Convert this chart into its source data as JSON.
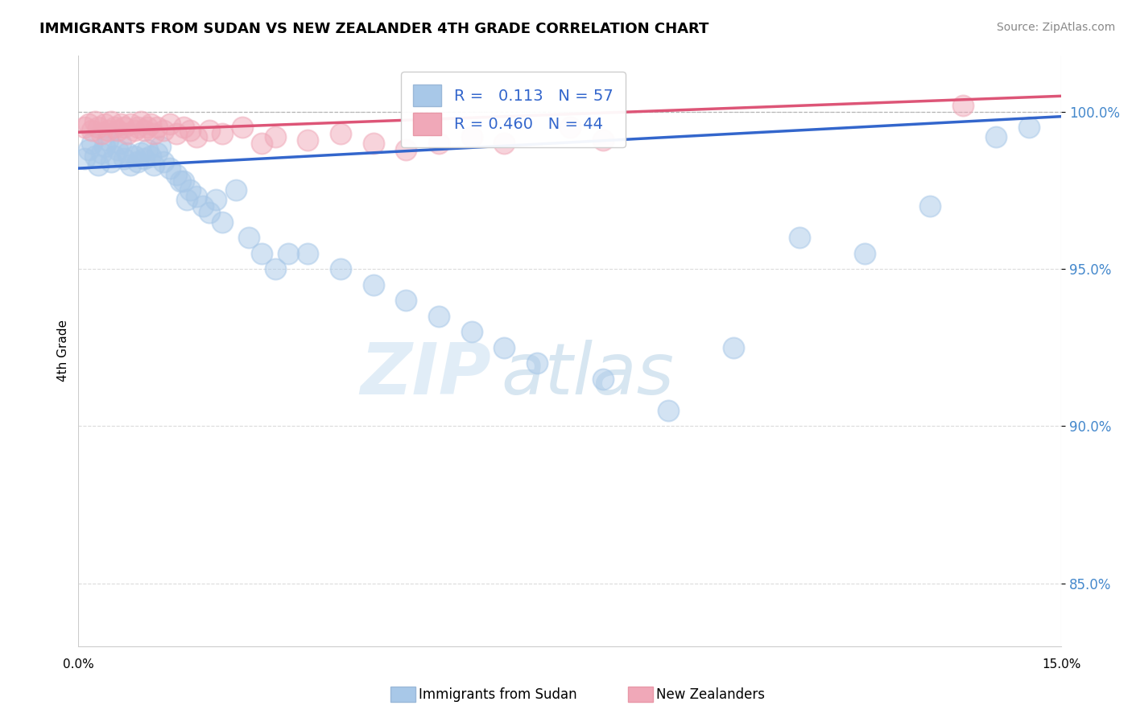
{
  "title": "IMMIGRANTS FROM SUDAN VS NEW ZEALANDER 4TH GRADE CORRELATION CHART",
  "source": "Source: ZipAtlas.com",
  "ylabel": "4th Grade",
  "xlim": [
    0.0,
    15.0
  ],
  "ylim": [
    83.0,
    101.8
  ],
  "yticks": [
    85.0,
    90.0,
    95.0,
    100.0
  ],
  "ytick_labels": [
    "85.0%",
    "90.0%",
    "95.0%",
    "100.0%"
  ],
  "blue_R": 0.113,
  "blue_N": 57,
  "pink_R": 0.46,
  "pink_N": 44,
  "legend_label_blue": "Immigrants from Sudan",
  "legend_label_pink": "New Zealanders",
  "blue_color": "#a8c8e8",
  "pink_color": "#f0a8b8",
  "blue_line_color": "#3366cc",
  "pink_line_color": "#dd5577",
  "watermark_zip": "ZIP",
  "watermark_atlas": "atlas",
  "blue_line_x0": 0.0,
  "blue_line_y0": 98.2,
  "blue_line_x1": 15.0,
  "blue_line_y1": 99.85,
  "pink_line_x0": 0.0,
  "pink_line_y0": 99.35,
  "pink_line_x1": 15.0,
  "pink_line_y1": 100.5,
  "dashed_line_y": 100.0,
  "blue_scatter_x": [
    0.1,
    0.15,
    0.2,
    0.25,
    0.3,
    0.35,
    0.4,
    0.45,
    0.5,
    0.55,
    0.6,
    0.65,
    0.7,
    0.75,
    0.8,
    0.85,
    0.9,
    0.95,
    1.0,
    1.05,
    1.1,
    1.15,
    1.2,
    1.25,
    1.3,
    1.4,
    1.5,
    1.6,
    1.7,
    1.8,
    1.9,
    2.0,
    2.1,
    2.2,
    2.4,
    2.6,
    2.8,
    3.0,
    3.2,
    3.5,
    4.0,
    4.5,
    5.0,
    5.5,
    6.0,
    6.5,
    7.0,
    8.0,
    9.0,
    10.0,
    11.0,
    12.0,
    13.0,
    14.0,
    14.5,
    1.55,
    1.65
  ],
  "blue_scatter_y": [
    98.5,
    98.8,
    99.0,
    98.6,
    98.3,
    98.7,
    98.9,
    99.1,
    98.4,
    98.6,
    98.8,
    99.0,
    98.5,
    98.7,
    98.3,
    98.6,
    98.4,
    98.7,
    98.5,
    98.8,
    98.6,
    98.3,
    98.7,
    98.9,
    98.4,
    98.2,
    98.0,
    97.8,
    97.5,
    97.3,
    97.0,
    96.8,
    97.2,
    96.5,
    97.5,
    96.0,
    95.5,
    95.0,
    95.5,
    95.5,
    95.0,
    94.5,
    94.0,
    93.5,
    93.0,
    92.5,
    92.0,
    91.5,
    90.5,
    92.5,
    96.0,
    95.5,
    97.0,
    99.2,
    99.5,
    97.8,
    97.2
  ],
  "pink_scatter_x": [
    0.1,
    0.15,
    0.2,
    0.25,
    0.3,
    0.35,
    0.4,
    0.45,
    0.5,
    0.55,
    0.6,
    0.65,
    0.7,
    0.75,
    0.8,
    0.85,
    0.9,
    0.95,
    1.0,
    1.05,
    1.1,
    1.15,
    1.2,
    1.3,
    1.4,
    1.5,
    1.6,
    1.7,
    1.8,
    2.0,
    2.2,
    2.5,
    2.8,
    3.0,
    3.5,
    4.0,
    4.5,
    5.0,
    5.5,
    6.0,
    6.5,
    7.5,
    8.0,
    13.5
  ],
  "pink_scatter_y": [
    99.5,
    99.6,
    99.4,
    99.7,
    99.5,
    99.3,
    99.6,
    99.4,
    99.7,
    99.5,
    99.4,
    99.6,
    99.5,
    99.3,
    99.6,
    99.4,
    99.5,
    99.7,
    99.4,
    99.5,
    99.6,
    99.3,
    99.5,
    99.4,
    99.6,
    99.3,
    99.5,
    99.4,
    99.2,
    99.4,
    99.3,
    99.5,
    99.0,
    99.2,
    99.1,
    99.3,
    99.0,
    98.8,
    99.0,
    99.2,
    99.0,
    99.5,
    99.1,
    100.2
  ]
}
